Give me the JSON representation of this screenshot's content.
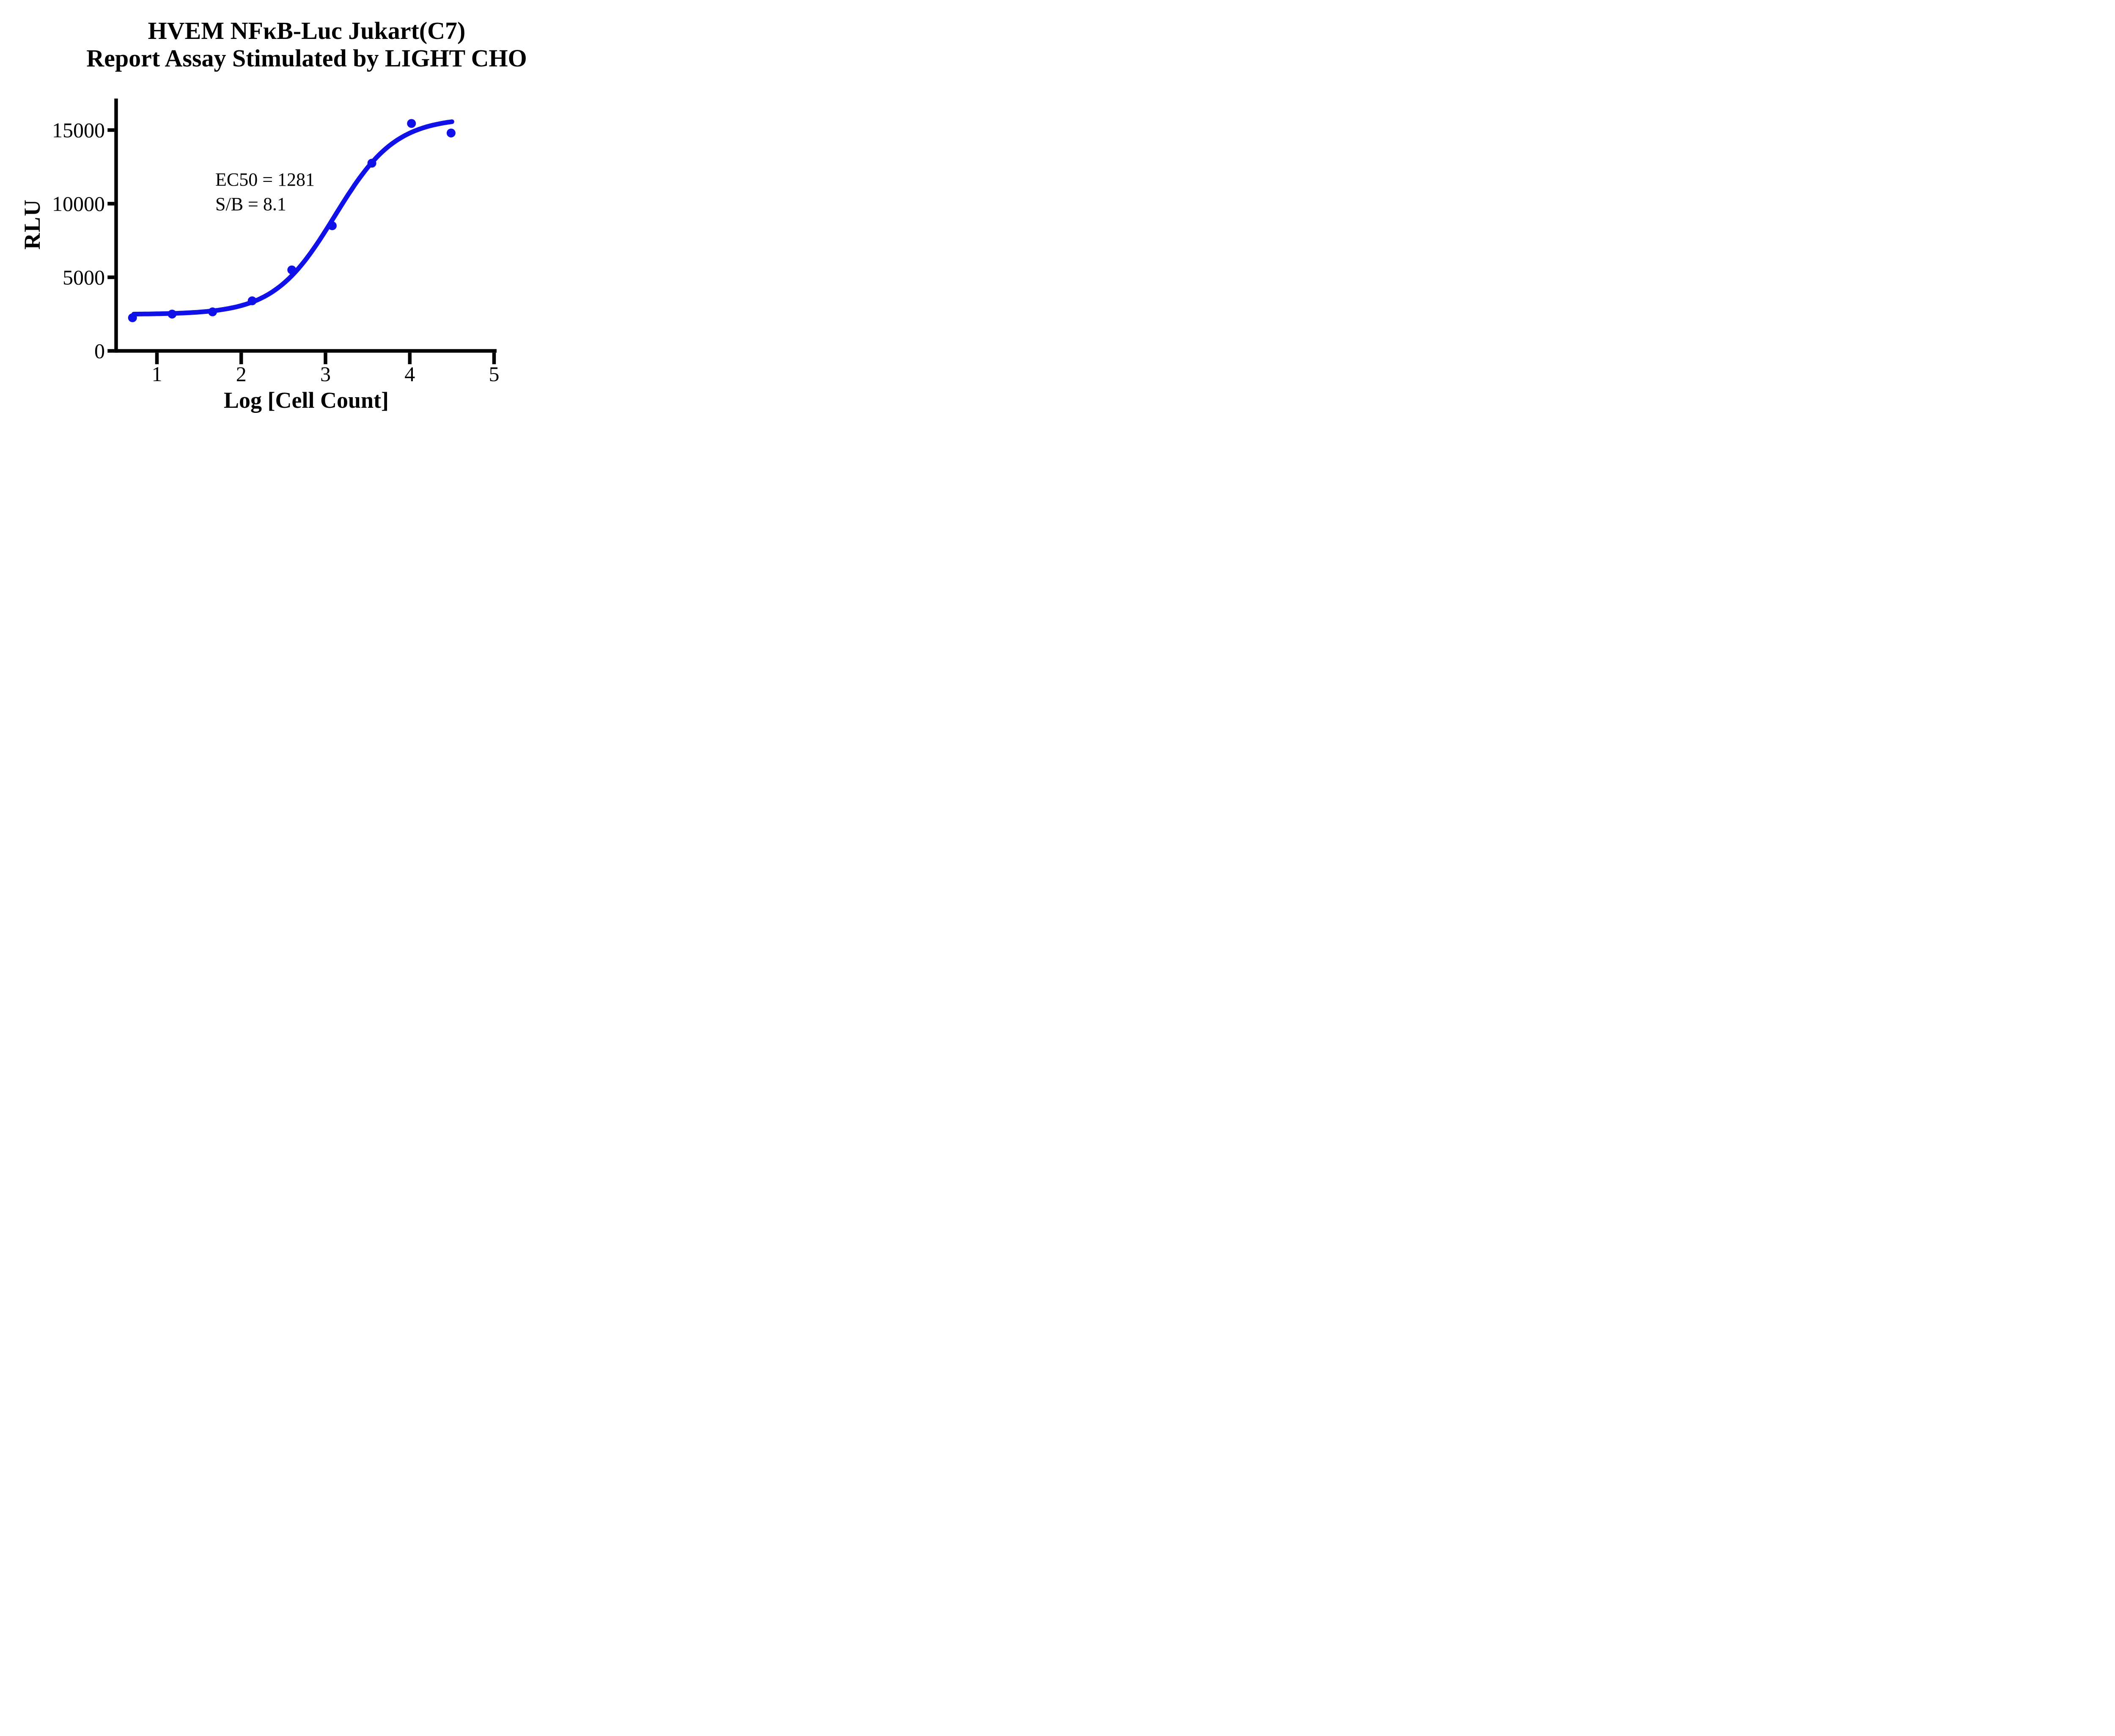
{
  "title": {
    "line1": "HVEM NFκB-Luc Jukart(C7)",
    "line2": "Report Assay Stimulated by LIGHT CHO"
  },
  "chart_data": {
    "type": "scatter",
    "title": "HVEM NFκB-Luc Jukart(C7) Report Assay Stimulated by LIGHT CHO",
    "xlabel": "Log [Cell Count]",
    "ylabel": "RLU",
    "x_ticks": [
      1,
      2,
      3,
      4,
      5
    ],
    "y_ticks": [
      0,
      5000,
      10000,
      15000
    ],
    "xlim": [
      0.52,
      5.03
    ],
    "ylim": [
      0,
      17100
    ],
    "grid": false,
    "legend_position": "none",
    "points": [
      {
        "x": 0.71,
        "y": 2250
      },
      {
        "x": 1.18,
        "y": 2500
      },
      {
        "x": 1.66,
        "y": 2650
      },
      {
        "x": 2.13,
        "y": 3400
      },
      {
        "x": 2.6,
        "y": 5500
      },
      {
        "x": 3.08,
        "y": 8500
      },
      {
        "x": 3.55,
        "y": 12750
      },
      {
        "x": 4.02,
        "y": 15450
      },
      {
        "x": 4.49,
        "y": 14800
      }
    ],
    "fit_curve": {
      "model": "4PL-logistic",
      "bottom": 2480,
      "top": 15850,
      "log_ec50": 3.11,
      "hill": 1.2,
      "x_start": 0.71,
      "x_end": 4.5
    },
    "annotations": [
      "EC50 = 1281",
      "S/B = 8.1"
    ],
    "ec50": 1281,
    "s_over_b": 8.1,
    "colors": {
      "series": "#1010e8",
      "axis": "#000000",
      "text": "#000000",
      "background": "#ffffff"
    }
  }
}
